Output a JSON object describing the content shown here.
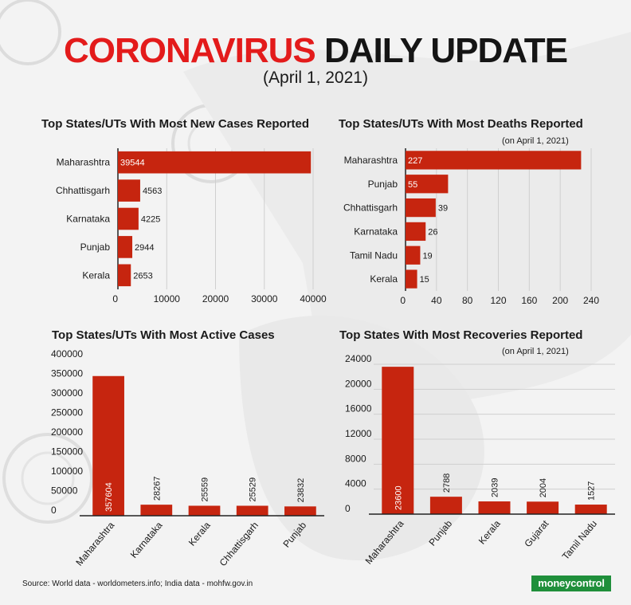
{
  "header": {
    "title_red": "CORONAVIRUS",
    "title_black": "DAILY UPDATE",
    "subtitle": "(April 1, 2021)"
  },
  "colors": {
    "bar": "#c6250f",
    "title_red": "#e31b1b",
    "logo_green": "#1f8f3b"
  },
  "chart_data": [
    {
      "id": "new_cases",
      "type": "bar",
      "orientation": "horizontal",
      "title": "Top States/UTs With Most New Cases Reported",
      "note": "",
      "categories": [
        "Maharashtra",
        "Chhattisgarh",
        "Karnataka",
        "Punjab",
        "Kerala"
      ],
      "values": [
        39544,
        4563,
        4225,
        2944,
        2653
      ],
      "xlim": [
        0,
        40000
      ],
      "ticks": [
        "0",
        "10000",
        "20000",
        "30000",
        "40000"
      ],
      "grid": true
    },
    {
      "id": "deaths",
      "type": "bar",
      "orientation": "horizontal",
      "title": "Top States/UTs With Most Deaths Reported",
      "note": "(on April 1, 2021)",
      "categories": [
        "Maharashtra",
        "Punjab",
        "Chhattisgarh",
        "Karnataka",
        "Tamil Nadu",
        "Kerala"
      ],
      "values": [
        227,
        55,
        39,
        26,
        19,
        15
      ],
      "xlim": [
        0,
        240
      ],
      "ticks": [
        "0",
        "40",
        "80",
        "120",
        "160",
        "200",
        "240"
      ],
      "grid": true
    },
    {
      "id": "active",
      "type": "bar",
      "orientation": "vertical",
      "title": "Top States/UTs With Most Active Cases",
      "note": "",
      "categories": [
        "Maharashtra",
        "Karnataka",
        "Kerala",
        "Chhattisgarh",
        "Punjab"
      ],
      "values": [
        357604,
        28267,
        25559,
        25529,
        23832
      ],
      "ylim": [
        0,
        400000
      ],
      "ticks": [
        "0",
        "50000",
        "100000",
        "150000",
        "200000",
        "250000",
        "300000",
        "350000",
        "400000"
      ],
      "grid": false
    },
    {
      "id": "recoveries",
      "type": "bar",
      "orientation": "vertical",
      "title": "Top States With Most Recoveries Reported",
      "note": "(on April 1, 2021)",
      "categories": [
        "Maharashtra",
        "Punjab",
        "Kerala",
        "Gujarat",
        "Tamil Nadu"
      ],
      "values": [
        23600,
        2788,
        2039,
        2004,
        1527
      ],
      "ylim": [
        0,
        24000
      ],
      "ticks": [
        "0",
        "4000",
        "8000",
        "12000",
        "16000",
        "20000",
        "24000"
      ],
      "grid": true
    }
  ],
  "footer": {
    "source": "Source: World data - worldometers.info; India data - mohfw.gov.in",
    "logo": "moneycontrol"
  }
}
